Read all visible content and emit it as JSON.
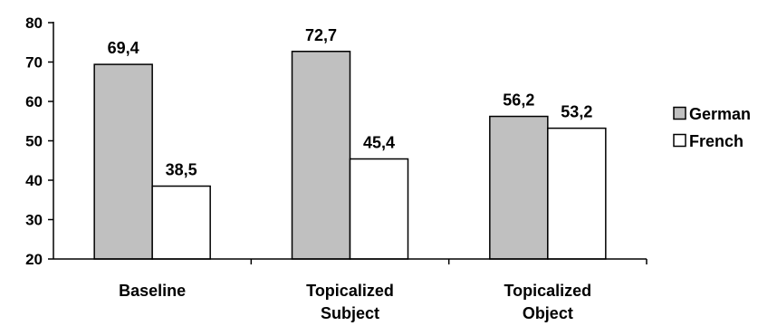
{
  "chart_data": {
    "type": "bar",
    "categories": [
      "Baseline",
      "Topicalized Subject",
      "Topicalized Object"
    ],
    "category_lines": [
      [
        "Baseline"
      ],
      [
        "Topicalized",
        "Subject"
      ],
      [
        "Topicalized",
        "Object"
      ]
    ],
    "series": [
      {
        "name": "German",
        "values": [
          69.4,
          72.7,
          56.2
        ],
        "labels": [
          "69,4",
          "72,7",
          "56,2"
        ],
        "color": "#c0c0c0"
      },
      {
        "name": "French",
        "values": [
          38.5,
          45.4,
          53.2
        ],
        "labels": [
          "38,5",
          "45,4",
          "53,2"
        ],
        "color": "#ffffff"
      }
    ],
    "ylim": [
      20,
      80
    ],
    "yticks": [
      20,
      30,
      40,
      50,
      60,
      70,
      80
    ],
    "title": "",
    "xlabel": "",
    "ylabel": "",
    "grid": false,
    "legend_position": "right"
  }
}
